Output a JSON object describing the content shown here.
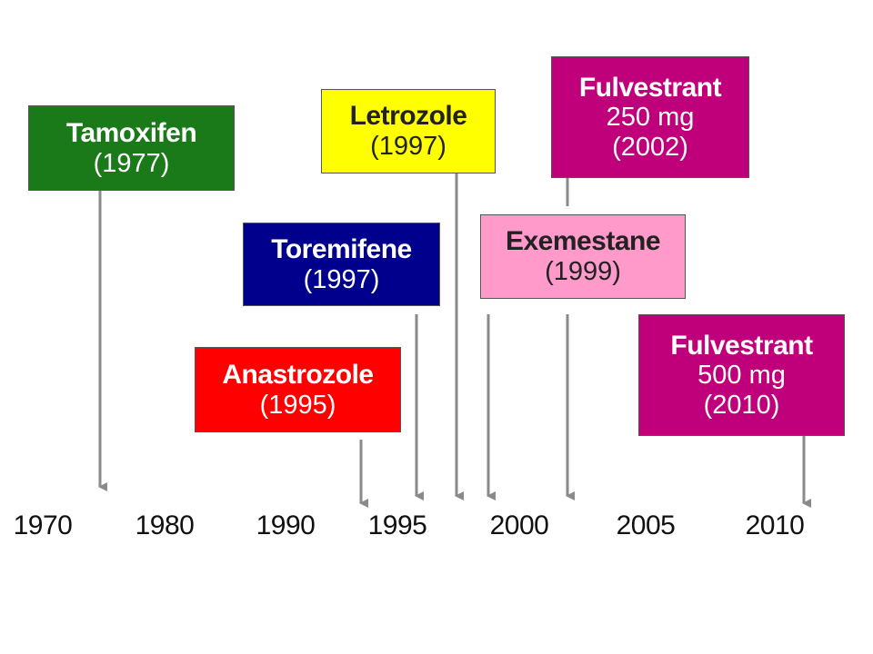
{
  "axis_years": [
    "1970",
    "1980",
    "1990",
    "1995",
    "2000",
    "2005",
    "2010"
  ],
  "drugs": [
    {
      "id": "tamoxifen",
      "name": "Tamoxifen",
      "lines": [
        "(1977)"
      ],
      "color": "#1a7a1a",
      "text_color": "#ffffff"
    },
    {
      "id": "letrozole",
      "name": "Letrozole",
      "lines": [
        "(1997)"
      ],
      "color": "#ffff00",
      "text_color": "#222222"
    },
    {
      "id": "fulvestrant-250",
      "name": "Fulvestrant",
      "lines": [
        "250 mg",
        "(2002)"
      ],
      "color": "#c0007a",
      "text_color": "#ffffff"
    },
    {
      "id": "toremifene",
      "name": "Toremifene",
      "lines": [
        "(1997)"
      ],
      "color": "#00008c",
      "text_color": "#ffffff"
    },
    {
      "id": "exemestane",
      "name": "Exemestane",
      "lines": [
        "(1999)"
      ],
      "color": "#ff9acb",
      "text_color": "#222222"
    },
    {
      "id": "anastrozole",
      "name": "Anastrozole",
      "lines": [
        "(1995)"
      ],
      "color": "#ff0000",
      "text_color": "#ffffff"
    },
    {
      "id": "fulvestrant-500",
      "name": "Fulvestrant",
      "lines": [
        "500 mg",
        "(2010)"
      ],
      "color": "#c0007a",
      "text_color": "#ffffff"
    }
  ],
  "colors": {
    "arrow": "#8a8a8a",
    "axis_text": "#111111",
    "background": "#ffffff"
  }
}
